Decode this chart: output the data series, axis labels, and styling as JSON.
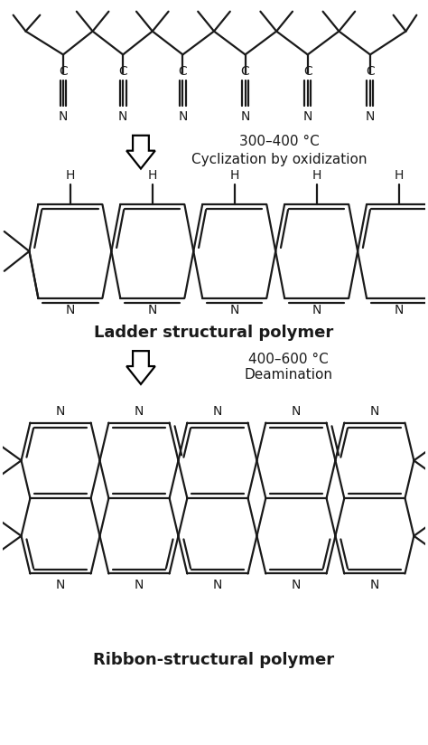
{
  "bg_color": "#ffffff",
  "line_color": "#1a1a1a",
  "text_color": "#1a1a1a",
  "fig_width": 4.74,
  "fig_height": 8.24,
  "dpi": 100,
  "arrow1_text_line1": "300–400 °C",
  "arrow1_text_line2": "Cyclization by oxidization",
  "arrow2_text_line1": "400–600 °C",
  "arrow2_text_line2": "Deamination",
  "label1": "Ladder structural polymer",
  "label2": "Ribbon-structural polymer",
  "lw": 1.6
}
